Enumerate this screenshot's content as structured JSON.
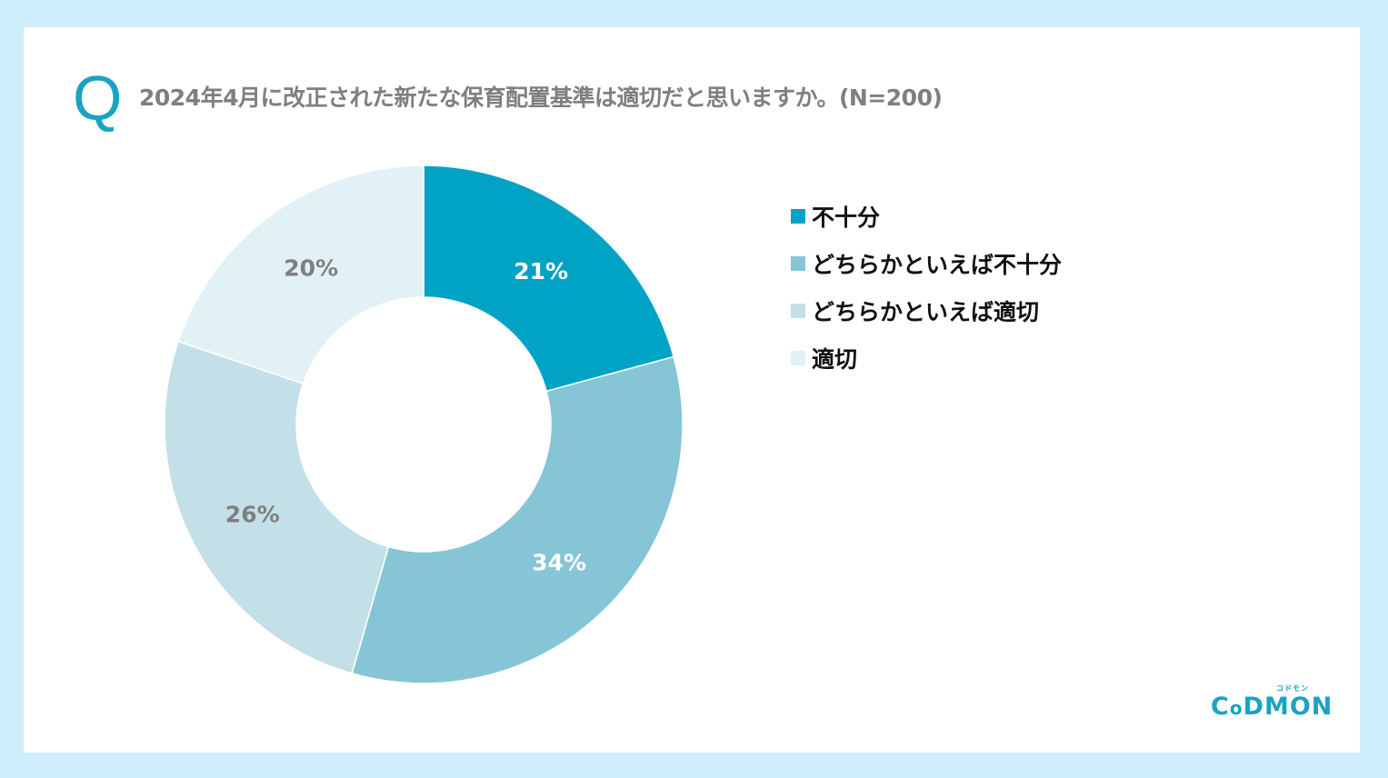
{
  "header": {
    "q_mark": "Q",
    "title": "2024年4月に改正された新たな保育配置基準は適切だと思いますか。(N=200)"
  },
  "chart_data": {
    "type": "pie",
    "donut": true,
    "title": "",
    "categories": [
      "不十分",
      "どちらかといえば不十分",
      "どちらかといえば適切",
      "適切"
    ],
    "values": [
      21,
      34,
      26,
      20
    ],
    "labels": [
      "21%",
      "34%",
      "26%",
      "20%"
    ],
    "colors": [
      "#00a3c4",
      "#86c5d6",
      "#c3e0e8",
      "#e2f1f5"
    ],
    "label_colors": [
      "#ffffff",
      "#ffffff",
      "#7f7f7f",
      "#7f7f7f"
    ],
    "unit": "%",
    "legend_position": "right",
    "start": "top, clockwise"
  },
  "logo": {
    "text": "CoDMON",
    "subtext": "コドモン"
  }
}
